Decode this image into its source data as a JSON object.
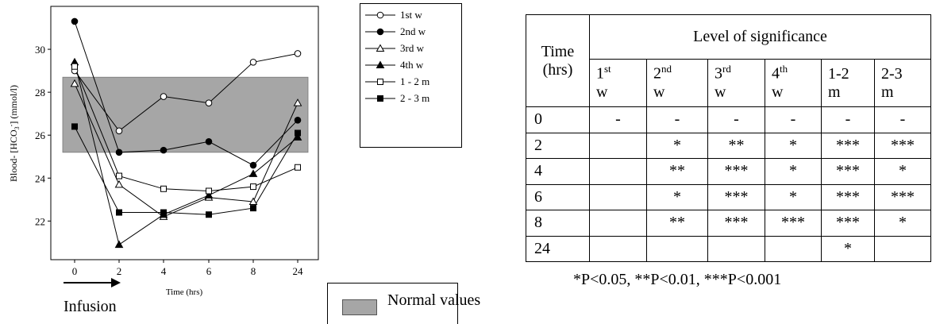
{
  "chart_data": {
    "type": "line",
    "categories": [
      "0",
      "2",
      "4",
      "6",
      "8",
      "24"
    ],
    "xlabel": "Time (hrs)",
    "ylabel": "Blood- [HCO3-] (mmol/l)",
    "ylabel_parts": {
      "pre": "Blood- [HCO",
      "sub": "3",
      "sup": "-",
      "post": "] (mmol/l)"
    },
    "ylim": [
      20.2,
      32
    ],
    "yticks": [
      22,
      24,
      26,
      28,
      30
    ],
    "normal_band": [
      25.2,
      28.7
    ],
    "series": [
      {
        "name": "1st w",
        "marker": "circle-open",
        "values": [
          29.0,
          26.2,
          27.8,
          27.5,
          29.4,
          29.8
        ]
      },
      {
        "name": "2nd w",
        "marker": "circle-filled",
        "values": [
          31.3,
          25.2,
          25.3,
          25.7,
          24.6,
          26.7
        ]
      },
      {
        "name": "3rd w",
        "marker": "triangle-open",
        "values": [
          28.4,
          23.7,
          22.2,
          23.1,
          22.9,
          27.5
        ]
      },
      {
        "name": "4th w",
        "marker": "triangle-filled",
        "values": [
          29.4,
          20.9,
          22.3,
          23.2,
          24.2,
          25.9
        ]
      },
      {
        "name": "1 - 2 m",
        "marker": "square-open",
        "values": [
          29.2,
          24.1,
          23.5,
          23.4,
          23.6,
          24.5
        ]
      },
      {
        "name": "2 - 3 m",
        "marker": "square-filled",
        "values": [
          26.4,
          22.4,
          22.4,
          22.3,
          22.6,
          26.1
        ]
      }
    ]
  },
  "infusion_label": "Infusion",
  "normal_values_label": "Normal values",
  "table": {
    "time_header": "Time",
    "time_unit": "(hrs)",
    "significance_header": "Level of significance",
    "columns": [
      {
        "main": "1",
        "sup": "st",
        "sub": "w"
      },
      {
        "main": "2",
        "sup": "nd",
        "sub": "w"
      },
      {
        "main": "3",
        "sup": "rd",
        "sub": "w"
      },
      {
        "main": "4",
        "sup": "th",
        "sub": "w"
      },
      {
        "main": "1-2",
        "sup": "",
        "sub": "m"
      },
      {
        "main": "2-3",
        "sup": "",
        "sub": "m"
      }
    ],
    "rows": [
      {
        "time": "0",
        "cells": [
          "-",
          "-",
          "-",
          "-",
          "-",
          "-"
        ]
      },
      {
        "time": "2",
        "cells": [
          "",
          "*",
          "**",
          "*",
          "***",
          "***"
        ]
      },
      {
        "time": "4",
        "cells": [
          "",
          "**",
          "***",
          "*",
          "***",
          "*"
        ]
      },
      {
        "time": "6",
        "cells": [
          "",
          "*",
          "***",
          "*",
          "***",
          "***"
        ]
      },
      {
        "time": "8",
        "cells": [
          "",
          "**",
          "***",
          "***",
          "***",
          "*"
        ]
      },
      {
        "time": "24",
        "cells": [
          "",
          "",
          "",
          "",
          "*",
          ""
        ]
      }
    ]
  },
  "footnote": "*P<0.05, **P<0.01, ***P<0.001"
}
